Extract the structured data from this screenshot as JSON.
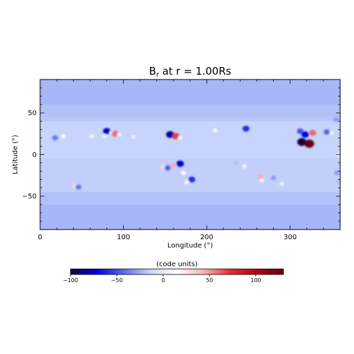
{
  "chart_data": {
    "type": "heatmap",
    "title": "B",
    "title_sub": "r",
    "title_rest": " at r = 1.00Rs",
    "xlabel": "Longitude (°)",
    "ylabel": "Latitude (°)",
    "xlim": [
      0,
      360
    ],
    "ylim": [
      -90,
      90
    ],
    "x_ticks": [
      0,
      100,
      200,
      300
    ],
    "y_ticks": [
      -50,
      0,
      50
    ],
    "x_tick_labels": [
      "0",
      "100",
      "200",
      "300"
    ],
    "y_tick_labels": [
      "−50",
      "0",
      "50"
    ],
    "background_value": -18,
    "colorbar": {
      "label": "(code units)",
      "range": [
        -100,
        130
      ],
      "ticks": [
        -100,
        -50,
        0,
        50,
        100
      ],
      "tick_labels": [
        "−100",
        "−50",
        "0",
        "50",
        "100"
      ],
      "colors": [
        "#13003f",
        "#0000e0",
        "#5a6ef0",
        "#c9d6fb",
        "#ffffff",
        "#f7b4b4",
        "#ec2a2a",
        "#b00014",
        "#650018"
      ]
    },
    "features": [
      {
        "lon": 18,
        "lat": 20,
        "value": -40
      },
      {
        "lon": 28,
        "lat": 22,
        "value": 15
      },
      {
        "lon": 42,
        "lat": -38,
        "value": 30
      },
      {
        "lon": 46,
        "lat": -39,
        "value": -40
      },
      {
        "lon": 62,
        "lat": 22,
        "value": 10
      },
      {
        "lon": 78,
        "lat": 22,
        "value": 8
      },
      {
        "lon": 80,
        "lat": 28,
        "value": -75
      },
      {
        "lon": 86,
        "lat": 26,
        "value": 10
      },
      {
        "lon": 90,
        "lat": 25,
        "value": 60
      },
      {
        "lon": 95,
        "lat": 24,
        "value": 10
      },
      {
        "lon": 112,
        "lat": 21,
        "value": 8
      },
      {
        "lon": 148,
        "lat": -15,
        "value": 30
      },
      {
        "lon": 153,
        "lat": -16,
        "value": -45
      },
      {
        "lon": 156,
        "lat": 24,
        "value": -85
      },
      {
        "lon": 160,
        "lat": -13,
        "value": 45
      },
      {
        "lon": 163,
        "lat": 22,
        "value": 70
      },
      {
        "lon": 168,
        "lat": -11,
        "value": -75
      },
      {
        "lon": 168,
        "lat": 20,
        "value": 10
      },
      {
        "lon": 172,
        "lat": -22,
        "value": 15
      },
      {
        "lon": 176,
        "lat": -33,
        "value": 20
      },
      {
        "lon": 182,
        "lat": -30,
        "value": -60
      },
      {
        "lon": 210,
        "lat": 29,
        "value": 12
      },
      {
        "lon": 235,
        "lat": -10,
        "value": -20
      },
      {
        "lon": 245,
        "lat": -14,
        "value": 10
      },
      {
        "lon": 247,
        "lat": 31,
        "value": -60
      },
      {
        "lon": 264,
        "lat": -27,
        "value": 45
      },
      {
        "lon": 266,
        "lat": -31,
        "value": 10
      },
      {
        "lon": 280,
        "lat": -28,
        "value": -30
      },
      {
        "lon": 290,
        "lat": -35,
        "value": 8
      },
      {
        "lon": 312,
        "lat": 28,
        "value": -50
      },
      {
        "lon": 314,
        "lat": 15,
        "value": -110
      },
      {
        "lon": 318,
        "lat": 24,
        "value": -70
      },
      {
        "lon": 323,
        "lat": 13,
        "value": 130
      },
      {
        "lon": 327,
        "lat": 26,
        "value": 60
      },
      {
        "lon": 344,
        "lat": 27,
        "value": -45
      },
      {
        "lon": 350,
        "lat": 26,
        "value": 10
      },
      {
        "lon": 355,
        "lat": 42,
        "value": -30
      },
      {
        "lon": 356,
        "lat": -22,
        "value": -30
      },
      {
        "lon": 358,
        "lat": -32,
        "value": -20
      },
      {
        "lon": 358,
        "lat": 0,
        "value": 8
      }
    ]
  }
}
